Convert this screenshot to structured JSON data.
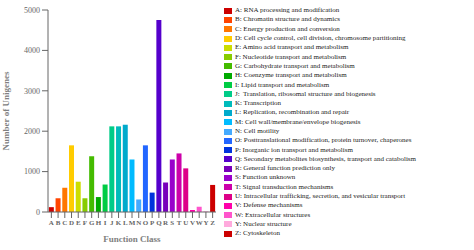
{
  "chart_data": {
    "type": "bar",
    "categories": [
      "A",
      "B",
      "C",
      "D",
      "E",
      "F",
      "G",
      "H",
      "I",
      "J",
      "K",
      "L",
      "M",
      "N",
      "O",
      "P",
      "Q",
      "R",
      "S",
      "T",
      "U",
      "V",
      "W",
      "Y",
      "Z"
    ],
    "values": [
      120,
      340,
      600,
      1650,
      750,
      340,
      1380,
      370,
      680,
      2120,
      2120,
      2160,
      1300,
      310,
      1650,
      480,
      4750,
      730,
      1300,
      1450,
      1080,
      50,
      130,
      20,
      670
    ],
    "colors": [
      "#cc0000",
      "#ff4400",
      "#ff7700",
      "#ffcc00",
      "#ccdd00",
      "#88cc00",
      "#44bb00",
      "#00aa00",
      "#00cc44",
      "#00cc88",
      "#00bbbb",
      "#00aacc",
      "#00bbff",
      "#44aaff",
      "#2266ff",
      "#0033dd",
      "#5500cc",
      "#7700bb",
      "#9900cc",
      "#cc00aa",
      "#dd0088",
      "#ff00aa",
      "#ff55cc",
      "#ffaadd",
      "#cc0000"
    ],
    "legend_labels": [
      "A: RNA processing and modification",
      "B: Chromatin structure and dynamics",
      "C: Energy production and conversion",
      "D: Cell cycle control, cell division, chromosome partitioning",
      "E: Amino acid transport and metabolism",
      "F: Nucleotide transport and metabolism",
      "G: Carbohydrate transport and metabolism",
      "H: Coenzyme transport and metabolism",
      "I: Lipid transport and metabolism",
      "J:  Translation, ribosomal structure and biogenesis",
      "K: Transcription",
      "L: Replication, recombination and repair",
      "M: Cell wall/membrane/envelope biogenesis",
      "N: Cell motility",
      "O: Posttranslational modification, protein turnover, chaperones",
      "P: Inorganic ion transport and metabolism",
      "Q: Secondary metabolites biosynthesis, transport and catabolism",
      "R: General function prediction only",
      "S: Function unknown",
      "T: Signal transduction mechanisms",
      "U: Intracellular trafficking, secretion, and vesicular transport",
      "V: Defense mechanisms",
      "W: Extracellular structures",
      "Y: Nuclear structure",
      "Z: Cytoskeleton"
    ],
    "legend": "right",
    "xlabel": "Function Class",
    "ylabel": "Number of Unigenes",
    "ylim": [
      0,
      5000
    ],
    "yticks": [
      0,
      1000,
      2000,
      3000,
      4000,
      5000
    ],
    "grid": false
  }
}
